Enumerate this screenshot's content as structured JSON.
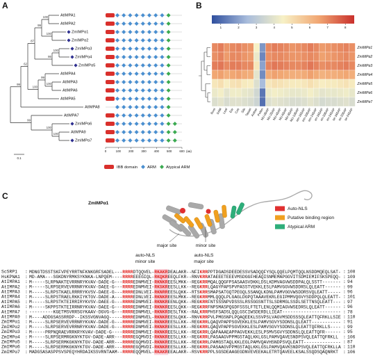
{
  "panels": {
    "a": "A",
    "b": "B",
    "c": "C"
  },
  "tree": {
    "leaves": [
      {
        "name": "AtIMPA1",
        "marked": false
      },
      {
        "name": "AtIMPA2",
        "marked": false
      },
      {
        "name": "ZmIMPα1",
        "marked": true
      },
      {
        "name": "ZmIMPα2",
        "marked": true
      },
      {
        "name": "ZmIMPα3",
        "marked": true
      },
      {
        "name": "ZmIMPα4",
        "marked": true
      },
      {
        "name": "ZmIMPα5",
        "marked": true
      },
      {
        "name": "AtIMPA4",
        "marked": false
      },
      {
        "name": "AtIMPA3",
        "marked": false
      },
      {
        "name": "AtIMPA6",
        "marked": false
      },
      {
        "name": "AtIMPA5",
        "marked": false
      },
      {
        "name": "AtIMPA8",
        "marked": false
      },
      {
        "name": "AtIMPA7",
        "marked": false
      },
      {
        "name": "ZmIMPα6",
        "marked": true
      },
      {
        "name": "AtIMPA9",
        "marked": false
      },
      {
        "name": "ZmIMPα7",
        "marked": true
      }
    ],
    "bootstrap": [
      "100",
      "100",
      "99",
      "100",
      "86",
      "87",
      "100",
      "99",
      "100",
      "62",
      "99",
      "100",
      "100",
      "99"
    ],
    "scale": "0.1"
  },
  "domains": {
    "rows": [
      {
        "ibb": true,
        "arm": 8,
        "atypical": 1
      },
      {
        "ibb": true,
        "arm": 8,
        "atypical": 1
      },
      {
        "ibb": true,
        "arm": 8,
        "atypical": 1
      },
      {
        "ibb": true,
        "arm": 8,
        "atypical": 1
      },
      {
        "ibb": true,
        "arm": 8,
        "atypical": 1
      },
      {
        "ibb": true,
        "arm": 8,
        "atypical": 1
      },
      {
        "ibb": true,
        "arm": 8,
        "atypical": 1
      },
      {
        "ibb": true,
        "arm": 8,
        "atypical": 1
      },
      {
        "ibb": true,
        "arm": 8,
        "atypical": 1
      },
      {
        "ibb": true,
        "arm": 8,
        "atypical": 1
      },
      {
        "ibb": true,
        "arm": 8,
        "atypical": 1
      },
      {
        "ibb": false,
        "arm": 8,
        "atypical": 1
      },
      {
        "ibb": true,
        "arm": 8,
        "atypical": 1
      },
      {
        "ibb": true,
        "arm": 8,
        "atypical": 2
      },
      {
        "ibb": true,
        "arm": 8,
        "atypical": 2
      },
      {
        "ibb": true,
        "arm": 8,
        "atypical": 2
      }
    ],
    "axis_ticks": [
      0,
      100,
      200,
      300,
      400,
      500,
      600
    ],
    "axis_unit": "(aa)",
    "xlim": [
      0,
      600
    ],
    "legend": [
      "IBB domain",
      "ARM",
      "Atypical ARM"
    ],
    "colors": [
      "#d9302c",
      "#4a8fd0",
      "#3aaa50"
    ]
  },
  "heatmap": {
    "columns": [
      "Root",
      "SAM",
      "Leaf",
      "Ear",
      "Cob",
      "Silk",
      "Tassel",
      "Anther",
      "Pollen",
      "NU-0DAP",
      "NU-2DAP",
      "NU-4DAP",
      "NU-6DAP",
      "NU-8DAP",
      "NU-10DAP",
      "em-16DAP",
      "em-20DAP",
      "em-24DAP",
      "en-16DAP",
      "en-20DAP",
      "en-24DAP",
      "se-16DAP",
      "se-20DAP",
      "se-24DAP"
    ],
    "rows": [
      "ZmIMPα1",
      "ZmIMPα2",
      "ZmIMPα3",
      "ZmIMPα4",
      "ZmIMPα5",
      "ZmIMPα6",
      "ZmIMPα7"
    ],
    "values": [
      [
        7,
        7.2,
        6.8,
        7,
        7.1,
        6.9,
        6.8,
        4.5,
        1.8,
        7,
        7.2,
        7.1,
        7,
        6.8,
        6.9,
        7,
        7.2,
        7,
        6.7,
        6.8,
        6.9,
        7,
        7.1,
        6.9
      ],
      [
        6.9,
        7.1,
        6.7,
        7,
        7,
        6.8,
        6.7,
        4.2,
        1.5,
        6.9,
        7,
        7,
        6.9,
        6.8,
        6.8,
        6.9,
        7,
        6.9,
        6.6,
        6.7,
        6.8,
        6.9,
        7,
        6.8
      ],
      [
        7.2,
        7.3,
        7,
        7.2,
        7.2,
        7,
        7,
        4.8,
        2,
        7.1,
        7.3,
        7.2,
        7.1,
        7,
        7,
        7.1,
        7.3,
        7.1,
        6.9,
        7,
        7,
        7.1,
        7.2,
        7
      ],
      [
        6.5,
        6.6,
        6.3,
        6.5,
        6.6,
        6.4,
        6.3,
        4,
        1.6,
        6.4,
        6.6,
        6.5,
        6.4,
        6.3,
        6.3,
        6.4,
        6.6,
        6.4,
        6.2,
        6.3,
        6.3,
        6.4,
        6.5,
        6.3
      ],
      [
        4.8,
        5,
        4.6,
        4.9,
        5,
        4.7,
        4.6,
        3.8,
        2.5,
        4.8,
        5,
        4.9,
        4.8,
        4.7,
        4.7,
        4.8,
        5,
        4.8,
        4.6,
        4.7,
        4.7,
        4.8,
        4.9,
        4.7
      ],
      [
        4.2,
        4.4,
        4,
        4.3,
        4.3,
        4.1,
        4,
        3.5,
        1.2,
        4.2,
        4.4,
        4.3,
        4.2,
        4.1,
        4.1,
        4.2,
        4.4,
        4.2,
        4,
        4.1,
        4.1,
        4.2,
        4.3,
        4.1
      ],
      [
        3.8,
        4,
        3.7,
        3.9,
        3.9,
        3.8,
        3.7,
        3.4,
        1.1,
        3.8,
        4,
        3.9,
        3.8,
        3.7,
        3.7,
        3.8,
        4,
        3.8,
        3.6,
        3.7,
        3.7,
        3.8,
        3.9,
        3.7
      ]
    ],
    "zlim": [
      0.5,
      8.5
    ],
    "colorbar_ticks": [
      1,
      2,
      3,
      4,
      5,
      6,
      7,
      8
    ],
    "colors": [
      "#2f4f9e",
      "#a9bddc",
      "#f7f1c6",
      "#f1a773",
      "#c9302c"
    ]
  },
  "structure": {
    "protein": "ZmIMPα1",
    "sites": [
      "major site",
      "minor site"
    ],
    "legend": [
      {
        "label": "Auto-NLS",
        "color": "#e03030"
      },
      {
        "label": "Putative binding region",
        "color": "#f0a020"
      },
      {
        "label": "Atypical ARM",
        "color": "#2eae7a"
      }
    ]
  },
  "alignment": {
    "headers": [
      {
        "label": "auto-NLS",
        "site": "minor site"
      },
      {
        "label": "auto-NLS",
        "site": "major site"
      }
    ],
    "rows": [
      {
        "name": "ScSRP1",
        "segments": [
          "MDNGTDSSTSKFVPEYRRTNFKNKGRFSADEL---",
          "RRRR",
          "DTQQVEL-",
          "RKAKR",
          "DEALAKR--NFI",
          "KRR",
          "PPTDGADSDEEDESSVSADQQFYSQLQQELPQMTQQLNSDDMQEQLSAT-"
        ],
        "end": 108
      },
      {
        "name": "HsKPNA1",
        "segments": [
          "MD-AMA---SGKDNYRMKSYKNKA-LNPQEM----",
          "RRRR",
          "EEEGIQL-",
          "RKQKR",
          "EEQLFKR--RNV",
          "KRR",
          "ATAEEETEEEVMSDGGFHEAQISNMEMAPGGVITSDMIEMIFSKSPEQQ-"
        ],
        "end": 109
      },
      {
        "name": "AtIMPA1",
        "segments": [
          "M-----SLRPNAKTEVRRNRYKVAV-DADE-G---",
          "RRRR",
          "EDNMVEI-",
          "RKNKR",
          "EESLMKK--REG",
          "KRR",
          "MQALQQGFPSASAASVDKKLDSLKDMVAGVWSDDPALQLSSTT-------"
        ],
        "end": 94
      },
      {
        "name": "AtIMPA2",
        "segments": [
          "M-----SLRPSERVEVRRNRYKVAV-DAEE-G---",
          "RRRR",
          "EDNMVEI-",
          "RKSKR",
          "EESLLKK--REG",
          "KRR",
          "LQAGYPAPSPVPASSTVEKKLESLPAMVGGVWSDDRSLQLEATT------"
        ],
        "end": 99
      },
      {
        "name": "AtIMPA3",
        "segments": [
          "M-----SLRPSTKAELRRRRYKVSV-DAEE-G---",
          "RRRR",
          "EDNLVEI-",
          "RKNRR",
          "EESLQKK--RTS",
          "KRR",
          "SMAPSATGQTPEGQLSSANQLKDNLPAMVGGVWSDDRSVQLEATT-----"
        ],
        "end": 96
      },
      {
        "name": "AtIMPA4",
        "segments": [
          "M-----SLRPSTRAELRKKIYKTGV-DADE-A---",
          "RRRR",
          "EDNLVEI-",
          "RKNKR",
          "EESLMKK--REG",
          "KRR",
          "MMLQQQLPLGAGLDGPQTAAAVEKRLEGIPMMVQGVYSDDPQLQLEATT-"
        ],
        "end": 101
      },
      {
        "name": "AtIMPA5",
        "segments": [
          "M-----SLRPSTKTEIRRIRYKVSV-DAEE-G---",
          "RRRR",
          "EDNMVEI-",
          "RKNKR",
          "EENLQKK--REG",
          "KRR",
          "FNTSSSNPVDSSSLRSSGGSNTTSLSDRMGLSSDLSETTNSQLEATT---"
        ],
        "end": 97
      },
      {
        "name": "AtIMPA6",
        "segments": [
          "M-----SKPPSTKTEIRRNRYKVAV-DAEE-G---",
          "RRRR",
          "EDNMVEI-",
          "RKNKR",
          "EESLQKK--REG",
          "KRR",
          "FNPSMASPQGDFSSSLFTETLENLQQMIAGVWSEDRSLQLEATT------"
        ],
        "end": 96
      },
      {
        "name": "AtIMPA7",
        "segments": [
          "---------KGETMSVRRSGYKAAV-DGVG-G---",
          "RRRR",
          "EDNMVEL-",
          "RKNKR",
          "DESLTKK--RAL",
          "KRR",
          "PHSFSADSLQQLGSCIWSDERDLLIEAT----------------------"
        ],
        "end": 78
      },
      {
        "name": "AtIMPA9",
        "segments": [
          "M----ADDGSASSRRDP--IKSSVGNVAGQ-----",
          "RRRR",
          "EDNMVEL-",
          "RKNKR",
          "EESLQKK--RNV",
          "KRR",
          "PVLPMGSNPLPQAQEEKLSSVPSLVAGVMSDDSSSQLEATTQFRKLLSIE"
        ],
        "end": 110
      },
      {
        "name": "ZmIMPα1",
        "segments": [
          "M-----SLRPSERVEVRRNRYKVAV-DADE-G---",
          "RRRR",
          "EDNMVEI-",
          "RKNKR",
          "EESLLKK--REG",
          "KRR",
          "LQAQVPAPPSGVEKKLESLPAMVSGVYSDDNSLQLEATT-----------"
        ],
        "end": 91
      },
      {
        "name": "ZmIMPα2",
        "segments": [
          "M-----SLRPSERVEVRRNRYKVAV-DADE-G---",
          "RRRR",
          "EDNMVEI-",
          "RKNKR",
          "EESLLKK--REG",
          "KRR",
          "LQAQVPAPPSGVEKKLESLPAMVSGVYSDDNSLQLEATTQFRKLLS----"
        ],
        "end": 99
      },
      {
        "name": "ZmIMPα3",
        "segments": [
          "M-----PRPNQRAEVRRKRYKVAV-DADE-G----",
          "RRRR",
          "EDNMVEI-",
          "RKNKR",
          "EESLLKK--REG",
          "KRR",
          "LQAPAAAEAPPAGVEKKLESLPSMVSGVYSDDNSLQLEATTQFR------"
        ],
        "end": 95
      },
      {
        "name": "ZmIMPα4",
        "segments": [
          "M-----SLRPSERMRGKNYKTGV-DADE-ARR---",
          "RRRR",
          "EGQMVDI-",
          "RKNKR",
          "EESLLKK--REG",
          "KRR",
          "LPASAAGVPPMGSTAQLKKLGSLPAMVQAVESNDPSVQLEATTQFRKLL"
        ],
        "end": 106
      },
      {
        "name": "ZmIMPα5",
        "segments": [
          "M-----SLRPSERMKGKNYKTGV-DADE-ARR---",
          "RRRR",
          "EGQMVDI-",
          "RKNKR",
          "EESLLKK--REG",
          "KRR",
          "LPAMGSTAQLKKLEGLPAMVQAVHSNDPSVQLEATT--------------"
        ],
        "end": 87
      },
      {
        "name": "ZmIMPα6",
        "segments": [
          "M-----SLRPSERMKGKNYKTGV-DADE-ARR---",
          "RRRR",
          "EGQMVDI-",
          "RKNKR",
          "EESLLKK--REG",
          "KRR",
          "LPASAAGVPPMGSTAQLKKLGSLPAMVQAVKSNDPSVQLEATTQFRKLLA"
        ],
        "end": 110
      },
      {
        "name": "ZmIMPα7",
        "segments": [
          "MADGSASASPPSVSPEQYHRDAIKSSVRNTAAM--",
          "RRRR",
          "EQQMVEL-",
          "RKAKR",
          "EEALAKR--RSV",
          "KRR",
          "PPLSGSDEAAGEGDNVEVEEKALETRTQAVEELKSALSSQDSQAQNRKT"
        ],
        "end": 106
      }
    ]
  }
}
